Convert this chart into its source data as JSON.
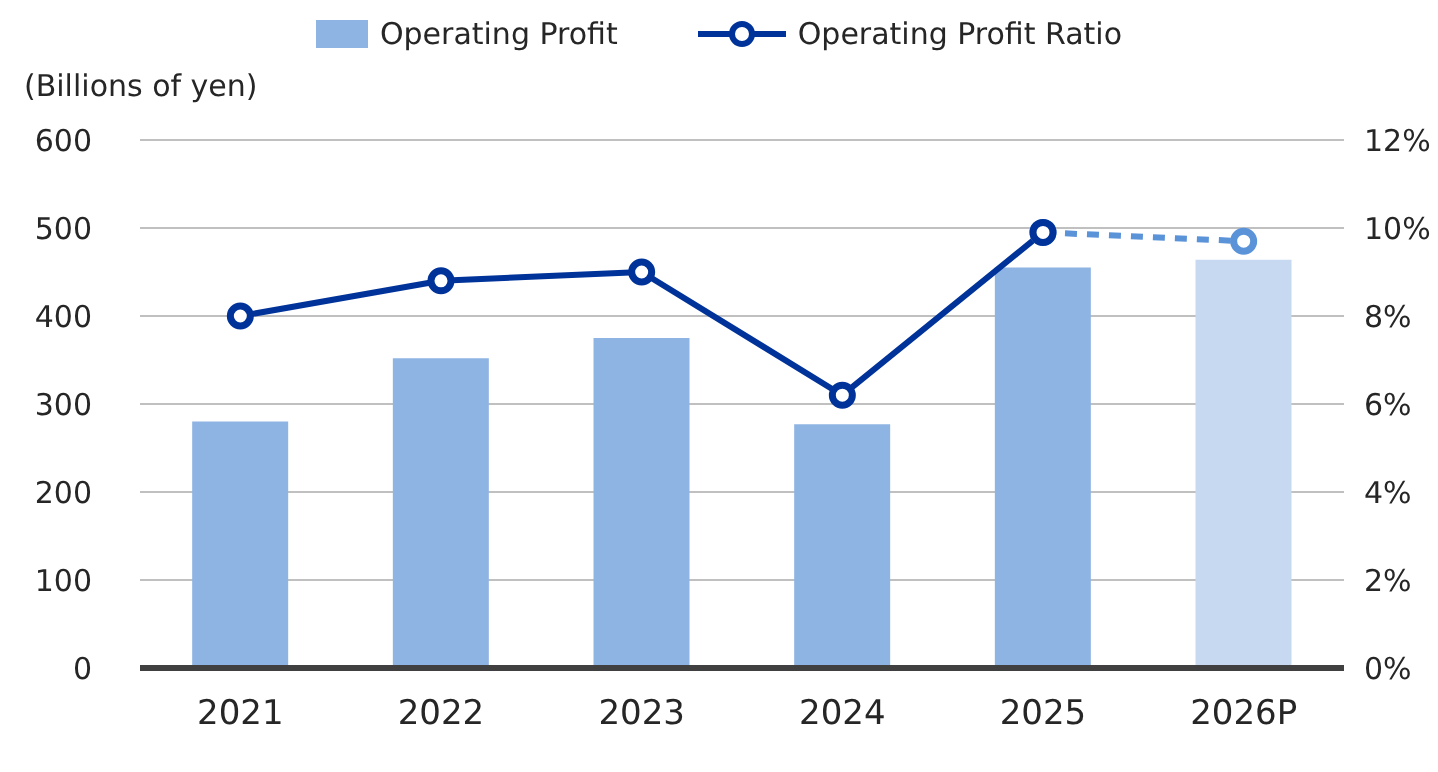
{
  "chart_data": {
    "type": "bar",
    "ylabel": "(Billions of yen)",
    "categories": [
      "2021",
      "2022",
      "2023",
      "2024",
      "2025",
      "2026P"
    ],
    "series": [
      {
        "name": "Operating Profit",
        "color": "#8eb4e3",
        "colors": [
          "#8eb4e3",
          "#8eb4e3",
          "#8eb4e3",
          "#8eb4e3",
          "#8eb4e3",
          "#c6d9f1"
        ],
        "values": [
          280,
          352,
          375,
          277,
          455,
          464
        ]
      },
      {
        "type": "line",
        "axis": "y2",
        "color": "#5b93d9",
        "marker": "circle",
        "line_style": "dashed",
        "values": [
          null,
          null,
          null,
          null,
          9.9,
          9.7
        ]
      },
      {
        "name": "Operating Profit Ratio",
        "type": "line",
        "axis": "y2",
        "color": "#003399",
        "marker": "circle",
        "line_style": "solid",
        "values": [
          8.0,
          8.8,
          9.0,
          6.2,
          9.9,
          null
        ]
      }
    ],
    "ylim": [
      0,
      600
    ],
    "yticks": [
      0,
      100,
      200,
      300,
      400,
      500,
      600
    ],
    "y2lim": [
      0,
      12
    ],
    "y2ticks": [
      {
        "value": 0,
        "label": "0%"
      },
      {
        "value": 2,
        "label": "2%"
      },
      {
        "value": 4,
        "label": "4%"
      },
      {
        "value": 6,
        "label": "6%"
      },
      {
        "value": 8,
        "label": "8%"
      },
      {
        "value": 10,
        "label": "10%"
      },
      {
        "value": 12,
        "label": "12%"
      }
    ],
    "grid": "y",
    "legend": "top"
  }
}
